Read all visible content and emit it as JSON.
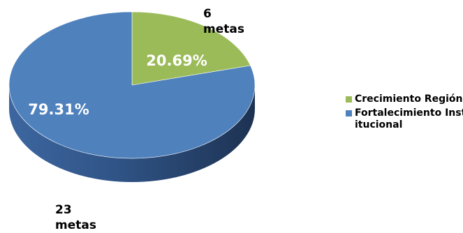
{
  "chart_data": {
    "type": "pie",
    "title": "",
    "categories": [
      "Crecimiento Región",
      "Fortalecimiento Institucional"
    ],
    "values": [
      20.69,
      79.31
    ],
    "data_labels": [
      "20.69%",
      "79.31%"
    ],
    "counts": [
      6,
      23
    ],
    "callouts": [
      {
        "value": "6",
        "unit": "metas"
      },
      {
        "value": "23",
        "unit": "metas"
      }
    ],
    "colors": [
      "#9bbb59",
      "#4f81bd"
    ],
    "style": "3d-pie",
    "legend_position": "right"
  }
}
